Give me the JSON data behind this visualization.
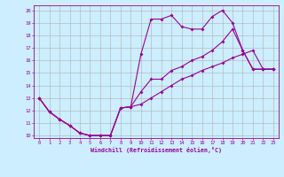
{
  "xlabel": "Windchill (Refroidissement éolien,°C)",
  "bg_color": "#cceeff",
  "line_color": "#990099",
  "grid_color": "#b0b0b0",
  "xlim": [
    -0.5,
    23.5
  ],
  "ylim": [
    9.8,
    20.4
  ],
  "xticks": [
    0,
    1,
    2,
    3,
    4,
    5,
    6,
    7,
    8,
    9,
    10,
    11,
    12,
    13,
    14,
    15,
    16,
    17,
    18,
    19,
    20,
    21,
    22,
    23
  ],
  "yticks": [
    10,
    11,
    12,
    13,
    14,
    15,
    16,
    17,
    18,
    19,
    20
  ],
  "line1_x": [
    0,
    1,
    2,
    3,
    4,
    5,
    6,
    7,
    8,
    9,
    10,
    11,
    12,
    13,
    14,
    15,
    16,
    17,
    18,
    19,
    20,
    21,
    22,
    23
  ],
  "line1_y": [
    13.0,
    11.9,
    11.3,
    10.8,
    10.2,
    10.0,
    10.0,
    10.0,
    12.2,
    12.3,
    16.5,
    19.3,
    19.3,
    19.6,
    18.7,
    18.5,
    18.5,
    19.5,
    20.0,
    19.0,
    16.8,
    15.3,
    15.3,
    15.3
  ],
  "line2_x": [
    0,
    1,
    2,
    3,
    4,
    5,
    6,
    7,
    8,
    9,
    10,
    11,
    12,
    13,
    14,
    15,
    16,
    17,
    18,
    19,
    20,
    21,
    22,
    23
  ],
  "line2_y": [
    13.0,
    11.9,
    11.3,
    10.8,
    10.2,
    10.0,
    10.0,
    10.0,
    12.2,
    12.3,
    13.5,
    14.5,
    14.5,
    15.2,
    15.5,
    16.0,
    16.3,
    16.8,
    17.5,
    18.5,
    16.8,
    15.3,
    15.3,
    15.3
  ],
  "line3_x": [
    0,
    1,
    2,
    3,
    4,
    5,
    6,
    7,
    8,
    9,
    10,
    11,
    12,
    13,
    14,
    15,
    16,
    17,
    18,
    19,
    20,
    21,
    22,
    23
  ],
  "line3_y": [
    13.0,
    11.9,
    11.3,
    10.8,
    10.2,
    10.0,
    10.0,
    10.0,
    12.2,
    12.3,
    12.5,
    13.0,
    13.5,
    14.0,
    14.5,
    14.8,
    15.2,
    15.5,
    15.8,
    16.2,
    16.5,
    16.8,
    15.3,
    15.3
  ]
}
